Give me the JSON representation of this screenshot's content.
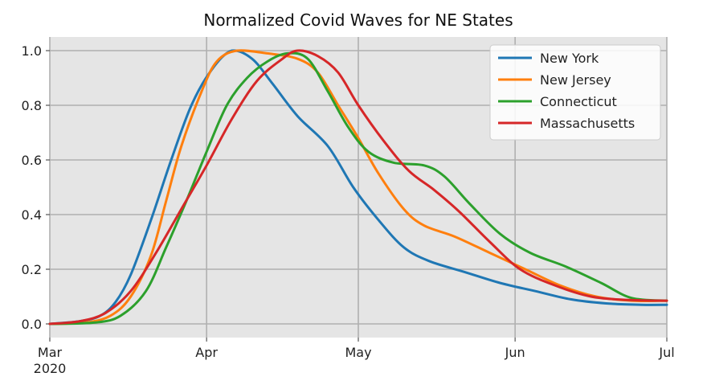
{
  "chart_data": {
    "type": "line",
    "title": "Normalized Covid Waves for NE States",
    "xlabel": "",
    "ylabel": "",
    "x_axis": {
      "kind": "date",
      "range": [
        "2020-03-01",
        "2020-07-01"
      ],
      "ticks": [
        {
          "date": "2020-03-01",
          "label": "Mar",
          "sublabel": "2020"
        },
        {
          "date": "2020-04-01",
          "label": "Apr",
          "sublabel": ""
        },
        {
          "date": "2020-05-01",
          "label": "May",
          "sublabel": ""
        },
        {
          "date": "2020-06-01",
          "label": "Jun",
          "sublabel": ""
        },
        {
          "date": "2020-07-01",
          "label": "Jul",
          "sublabel": ""
        }
      ]
    },
    "y_axis": {
      "range": [
        -0.05,
        1.05
      ],
      "ticks": [
        {
          "value": 0.0,
          "label": "0.0"
        },
        {
          "value": 0.2,
          "label": "0.2"
        },
        {
          "value": 0.4,
          "label": "0.4"
        },
        {
          "value": 0.6,
          "label": "0.6"
        },
        {
          "value": 0.8,
          "label": "0.8"
        },
        {
          "value": 1.0,
          "label": "1.0"
        }
      ]
    },
    "grid": true,
    "legend_position": "top-right",
    "series": [
      {
        "name": "New York",
        "color": "#1f77b4",
        "points": [
          [
            "2020-03-01",
            0.0
          ],
          [
            "2020-03-07",
            0.01
          ],
          [
            "2020-03-11",
            0.03
          ],
          [
            "2020-03-14",
            0.08
          ],
          [
            "2020-03-17",
            0.18
          ],
          [
            "2020-03-21",
            0.38
          ],
          [
            "2020-03-25",
            0.6
          ],
          [
            "2020-03-29",
            0.8
          ],
          [
            "2020-04-02",
            0.93
          ],
          [
            "2020-04-06",
            1.0
          ],
          [
            "2020-04-10",
            0.97
          ],
          [
            "2020-04-14",
            0.88
          ],
          [
            "2020-04-19",
            0.76
          ],
          [
            "2020-04-25",
            0.65
          ],
          [
            "2020-04-30",
            0.5
          ],
          [
            "2020-05-05",
            0.38
          ],
          [
            "2020-05-10",
            0.28
          ],
          [
            "2020-05-15",
            0.23
          ],
          [
            "2020-05-22",
            0.19
          ],
          [
            "2020-05-29",
            0.15
          ],
          [
            "2020-06-05",
            0.12
          ],
          [
            "2020-06-12",
            0.09
          ],
          [
            "2020-06-19",
            0.075
          ],
          [
            "2020-06-26",
            0.07
          ],
          [
            "2020-07-01",
            0.07
          ]
        ]
      },
      {
        "name": "New Jersey",
        "color": "#ff7f0e",
        "points": [
          [
            "2020-03-01",
            0.0
          ],
          [
            "2020-03-08",
            0.005
          ],
          [
            "2020-03-13",
            0.03
          ],
          [
            "2020-03-17",
            0.1
          ],
          [
            "2020-03-21",
            0.25
          ],
          [
            "2020-03-24",
            0.45
          ],
          [
            "2020-03-27",
            0.65
          ],
          [
            "2020-03-31",
            0.85
          ],
          [
            "2020-04-03",
            0.96
          ],
          [
            "2020-04-07",
            1.0
          ],
          [
            "2020-04-13",
            0.99
          ],
          [
            "2020-04-19",
            0.97
          ],
          [
            "2020-04-23",
            0.92
          ],
          [
            "2020-04-27",
            0.8
          ],
          [
            "2020-05-01",
            0.68
          ],
          [
            "2020-05-05",
            0.55
          ],
          [
            "2020-05-10",
            0.42
          ],
          [
            "2020-05-14",
            0.36
          ],
          [
            "2020-05-20",
            0.32
          ],
          [
            "2020-05-27",
            0.26
          ],
          [
            "2020-06-03",
            0.2
          ],
          [
            "2020-06-10",
            0.14
          ],
          [
            "2020-06-17",
            0.1
          ],
          [
            "2020-06-24",
            0.085
          ],
          [
            "2020-07-01",
            0.085
          ]
        ]
      },
      {
        "name": "Connecticut",
        "color": "#2ca02c",
        "points": [
          [
            "2020-03-01",
            0.0
          ],
          [
            "2020-03-10",
            0.005
          ],
          [
            "2020-03-15",
            0.03
          ],
          [
            "2020-03-20",
            0.12
          ],
          [
            "2020-03-24",
            0.28
          ],
          [
            "2020-03-28",
            0.45
          ],
          [
            "2020-04-01",
            0.63
          ],
          [
            "2020-04-05",
            0.8
          ],
          [
            "2020-04-09",
            0.9
          ],
          [
            "2020-04-13",
            0.96
          ],
          [
            "2020-04-17",
            0.99
          ],
          [
            "2020-04-21",
            0.97
          ],
          [
            "2020-04-25",
            0.85
          ],
          [
            "2020-04-29",
            0.72
          ],
          [
            "2020-05-03",
            0.63
          ],
          [
            "2020-05-08",
            0.59
          ],
          [
            "2020-05-14",
            0.58
          ],
          [
            "2020-05-18",
            0.54
          ],
          [
            "2020-05-23",
            0.44
          ],
          [
            "2020-05-29",
            0.33
          ],
          [
            "2020-06-04",
            0.26
          ],
          [
            "2020-06-11",
            0.21
          ],
          [
            "2020-06-18",
            0.15
          ],
          [
            "2020-06-24",
            0.095
          ],
          [
            "2020-07-01",
            0.085
          ]
        ]
      },
      {
        "name": "Massachusetts",
        "color": "#d62728",
        "points": [
          [
            "2020-03-01",
            0.0
          ],
          [
            "2020-03-07",
            0.01
          ],
          [
            "2020-03-12",
            0.04
          ],
          [
            "2020-03-17",
            0.12
          ],
          [
            "2020-03-22",
            0.26
          ],
          [
            "2020-03-27",
            0.42
          ],
          [
            "2020-04-01",
            0.58
          ],
          [
            "2020-04-06",
            0.75
          ],
          [
            "2020-04-11",
            0.89
          ],
          [
            "2020-04-16",
            0.97
          ],
          [
            "2020-04-19",
            1.0
          ],
          [
            "2020-04-23",
            0.98
          ],
          [
            "2020-04-27",
            0.92
          ],
          [
            "2020-05-01",
            0.8
          ],
          [
            "2020-05-06",
            0.67
          ],
          [
            "2020-05-11",
            0.56
          ],
          [
            "2020-05-16",
            0.49
          ],
          [
            "2020-05-21",
            0.41
          ],
          [
            "2020-05-27",
            0.3
          ],
          [
            "2020-06-02",
            0.2
          ],
          [
            "2020-06-09",
            0.14
          ],
          [
            "2020-06-16",
            0.1
          ],
          [
            "2020-06-23",
            0.088
          ],
          [
            "2020-07-01",
            0.085
          ]
        ]
      }
    ]
  }
}
